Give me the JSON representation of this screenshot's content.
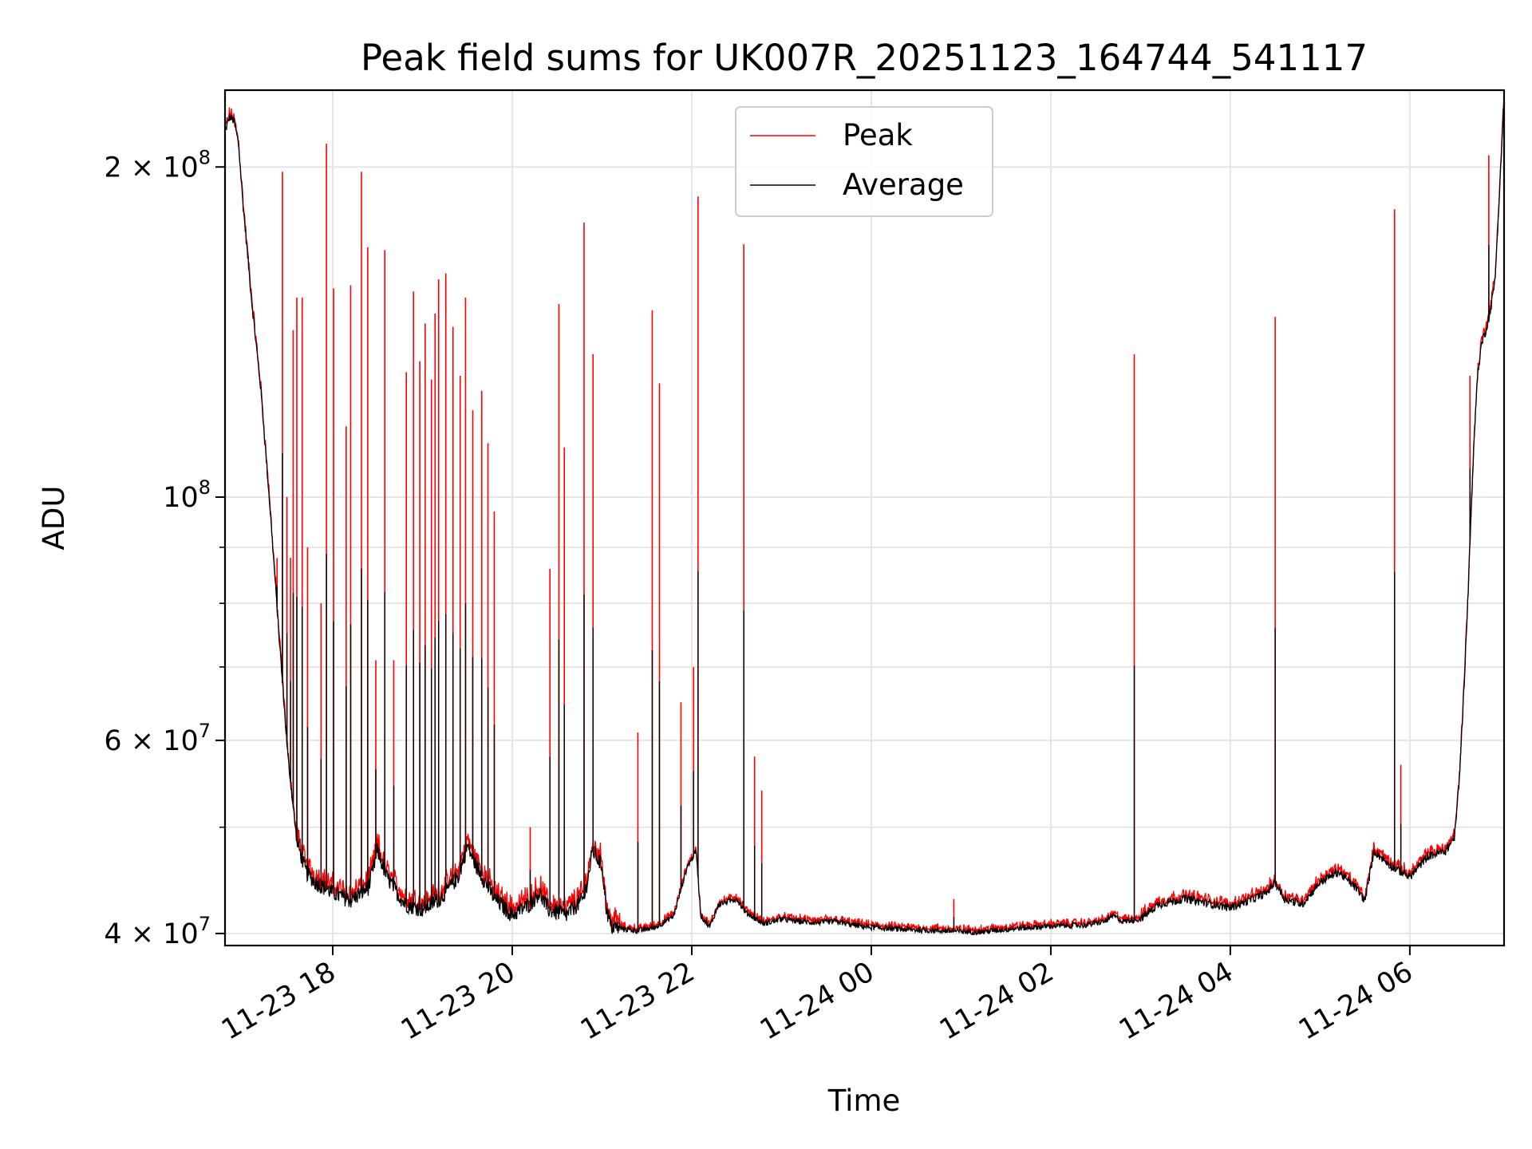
{
  "chart_data": {
    "type": "line",
    "title": "Peak field sums for UK007R_20251123_164744_541117",
    "xlabel": "Time",
    "ylabel": "ADU",
    "yscale": "log",
    "grid": true,
    "legend_position": "top-center",
    "x_range_hours": [
      16.8,
      31.05
    ],
    "y_range": [
      39000000,
      235000000
    ],
    "x_ticks": [
      {
        "hour": 18,
        "label": "11-23 18"
      },
      {
        "hour": 20,
        "label": "11-23 20"
      },
      {
        "hour": 22,
        "label": "11-23 22"
      },
      {
        "hour": 24,
        "label": "11-24 00"
      },
      {
        "hour": 26,
        "label": "11-24 02"
      },
      {
        "hour": 28,
        "label": "11-24 04"
      },
      {
        "hour": 30,
        "label": "11-24 06"
      }
    ],
    "y_ticks": [
      {
        "value": 40000000,
        "mantissa": "4 × 10",
        "exp": "7"
      },
      {
        "value": 60000000,
        "mantissa": "6 × 10",
        "exp": "7"
      },
      {
        "value": 100000000,
        "mantissa": "10",
        "exp": "8"
      },
      {
        "value": 200000000,
        "mantissa": "2 × 10",
        "exp": "8"
      }
    ],
    "y_minor_ticks": [
      50000000,
      70000000,
      80000000,
      90000000
    ],
    "series": [
      {
        "name": "Peak",
        "color": "#ff0000"
      },
      {
        "name": "Average",
        "color": "#000000"
      }
    ],
    "average_baseline": [
      [
        16.8,
        215000000
      ],
      [
        16.85,
        222000000
      ],
      [
        16.9,
        220000000
      ],
      [
        16.95,
        210000000
      ],
      [
        17.0,
        185000000
      ],
      [
        17.1,
        150000000
      ],
      [
        17.2,
        125000000
      ],
      [
        17.3,
        98000000
      ],
      [
        17.4,
        75000000
      ],
      [
        17.5,
        58000000
      ],
      [
        17.6,
        48500000
      ],
      [
        17.7,
        45500000
      ],
      [
        17.8,
        44500000
      ],
      [
        18.0,
        43500000
      ],
      [
        18.2,
        42800000
      ],
      [
        18.4,
        44000000
      ],
      [
        18.5,
        47500000
      ],
      [
        18.6,
        45000000
      ],
      [
        18.8,
        42500000
      ],
      [
        19.0,
        42000000
      ],
      [
        19.2,
        43000000
      ],
      [
        19.4,
        45000000
      ],
      [
        19.5,
        48000000
      ],
      [
        19.6,
        46000000
      ],
      [
        19.8,
        43000000
      ],
      [
        20.0,
        41500000
      ],
      [
        20.2,
        42500000
      ],
      [
        20.3,
        43500000
      ],
      [
        20.4,
        42000000
      ],
      [
        20.6,
        41500000
      ],
      [
        20.8,
        43000000
      ],
      [
        20.9,
        47500000
      ],
      [
        21.0,
        46000000
      ],
      [
        21.05,
        42000000
      ],
      [
        21.1,
        40500000
      ],
      [
        21.4,
        40200000
      ],
      [
        21.6,
        40500000
      ],
      [
        21.8,
        41500000
      ],
      [
        21.95,
        46000000
      ],
      [
        22.05,
        47500000
      ],
      [
        22.1,
        41500000
      ],
      [
        22.2,
        40500000
      ],
      [
        22.3,
        42500000
      ],
      [
        22.5,
        43000000
      ],
      [
        22.6,
        41800000
      ],
      [
        22.8,
        40800000
      ],
      [
        23.0,
        41200000
      ],
      [
        23.2,
        41000000
      ],
      [
        23.4,
        40900000
      ],
      [
        23.6,
        41000000
      ],
      [
        23.8,
        40700000
      ],
      [
        24.0,
        40500000
      ],
      [
        24.4,
        40300000
      ],
      [
        24.8,
        40200000
      ],
      [
        25.2,
        40100000
      ],
      [
        25.6,
        40400000
      ],
      [
        26.0,
        40600000
      ],
      [
        26.4,
        40700000
      ],
      [
        26.6,
        41000000
      ],
      [
        26.7,
        41500000
      ],
      [
        26.8,
        41000000
      ],
      [
        27.0,
        41200000
      ],
      [
        27.2,
        42500000
      ],
      [
        27.5,
        43000000
      ],
      [
        27.8,
        42500000
      ],
      [
        28.0,
        42200000
      ],
      [
        28.2,
        42800000
      ],
      [
        28.4,
        43500000
      ],
      [
        28.5,
        44500000
      ],
      [
        28.6,
        43000000
      ],
      [
        28.8,
        42500000
      ],
      [
        28.9,
        43500000
      ],
      [
        29.0,
        44500000
      ],
      [
        29.2,
        45500000
      ],
      [
        29.4,
        44000000
      ],
      [
        29.5,
        42800000
      ],
      [
        29.6,
        47500000
      ],
      [
        29.8,
        46000000
      ],
      [
        30.0,
        45000000
      ],
      [
        30.2,
        47000000
      ],
      [
        30.4,
        47500000
      ],
      [
        30.5,
        49000000
      ],
      [
        30.55,
        55000000
      ],
      [
        30.6,
        66000000
      ],
      [
        30.65,
        82000000
      ],
      [
        30.7,
        105000000
      ],
      [
        30.75,
        128000000
      ],
      [
        30.8,
        138000000
      ],
      [
        30.85,
        142000000
      ],
      [
        30.9,
        148000000
      ],
      [
        30.95,
        158000000
      ],
      [
        31.0,
        190000000
      ],
      [
        31.05,
        232000000
      ]
    ],
    "peak_spikes": [
      [
        17.38,
        88000000
      ],
      [
        17.44,
        198000000
      ],
      [
        17.49,
        100000000
      ],
      [
        17.53,
        88000000
      ],
      [
        17.56,
        142000000
      ],
      [
        17.6,
        152000000
      ],
      [
        17.66,
        152000000
      ],
      [
        17.72,
        90000000
      ],
      [
        17.87,
        80000000
      ],
      [
        17.93,
        210000000
      ],
      [
        18.01,
        155000000
      ],
      [
        18.15,
        116000000
      ],
      [
        18.2,
        156000000
      ],
      [
        18.32,
        198000000
      ],
      [
        18.39,
        169000000
      ],
      [
        18.48,
        71000000
      ],
      [
        18.58,
        168000000
      ],
      [
        18.68,
        71000000
      ],
      [
        18.82,
        130000000
      ],
      [
        18.9,
        154000000
      ],
      [
        18.97,
        133000000
      ],
      [
        19.03,
        144000000
      ],
      [
        19.1,
        128000000
      ],
      [
        19.14,
        147000000
      ],
      [
        19.18,
        158000000
      ],
      [
        19.26,
        160000000
      ],
      [
        19.34,
        143000000
      ],
      [
        19.42,
        129000000
      ],
      [
        19.48,
        152000000
      ],
      [
        19.56,
        120000000
      ],
      [
        19.66,
        125000000
      ],
      [
        19.73,
        112000000
      ],
      [
        19.8,
        97000000
      ],
      [
        20.2,
        50000000
      ],
      [
        20.42,
        86000000
      ],
      [
        20.52,
        150000000
      ],
      [
        20.58,
        111000000
      ],
      [
        20.8,
        178000000
      ],
      [
        20.9,
        135000000
      ],
      [
        21.4,
        61000000
      ],
      [
        21.56,
        148000000
      ],
      [
        21.64,
        127000000
      ],
      [
        21.88,
        65000000
      ],
      [
        22.02,
        70000000
      ],
      [
        22.07,
        188000000
      ],
      [
        22.58,
        170000000
      ],
      [
        22.7,
        58000000
      ],
      [
        22.78,
        54000000
      ],
      [
        24.92,
        43000000
      ],
      [
        26.93,
        135000000
      ],
      [
        28.5,
        146000000
      ],
      [
        29.83,
        183000000
      ],
      [
        29.9,
        57000000
      ],
      [
        30.67,
        129000000
      ],
      [
        30.88,
        205000000
      ]
    ],
    "legend": {
      "peak_label": "Peak",
      "average_label": "Average"
    }
  }
}
